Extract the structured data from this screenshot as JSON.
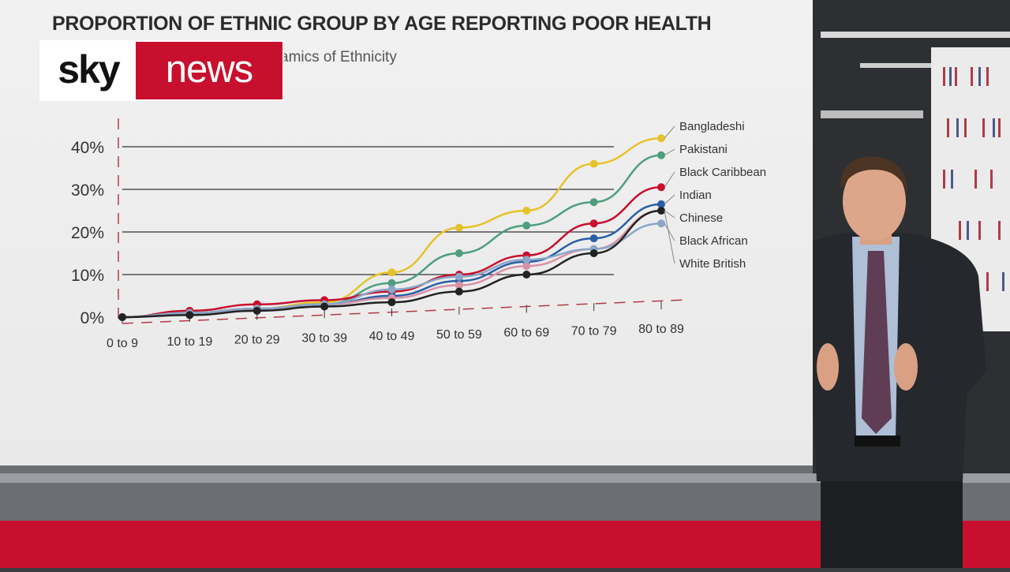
{
  "logo": {
    "left": "sky",
    "right": "news"
  },
  "chart_data": {
    "type": "line",
    "title": "PROPORTION OF ETHNIC GROUP BY AGE REPORTING POOR HEALTH",
    "subtitle": "amics of Ethnicity",
    "categories": [
      "0 to 9",
      "10 to 19",
      "20 to 29",
      "30 to 39",
      "40 to 49",
      "50 to 59",
      "60 to 69",
      "70 to 79",
      "80 to 89"
    ],
    "y_ticks": [
      "0%",
      "10%",
      "20%",
      "30%",
      "40%"
    ],
    "ylim": [
      0,
      42
    ],
    "grid": "horizontal",
    "legend_position": "right, at line ends",
    "series": [
      {
        "name": "Bangladeshi",
        "color": "#e6c229",
        "values": [
          0,
          1,
          2,
          3.5,
          10.5,
          21,
          25,
          36,
          42
        ]
      },
      {
        "name": "Pakistani",
        "color": "#4e9e7e",
        "values": [
          0,
          1,
          2,
          3,
          8,
          15,
          21.5,
          27,
          38
        ]
      },
      {
        "name": "Black Caribbean",
        "color": "#c8102e",
        "values": [
          0,
          1.5,
          3,
          4,
          6,
          10,
          14.5,
          22,
          30.5
        ]
      },
      {
        "name": "Indian",
        "color": "#2a5fa5",
        "values": [
          0,
          1,
          2,
          3,
          5,
          8.5,
          13,
          18.5,
          26.5
        ]
      },
      {
        "name": "Chinese",
        "color": "#d891a5",
        "values": [
          0,
          1,
          2,
          3,
          4.5,
          7.5,
          12,
          16,
          25
        ]
      },
      {
        "name": "Black African",
        "color": "#8aa7c8",
        "values": [
          0,
          1,
          2,
          3,
          6.5,
          9.5,
          13.5,
          16,
          22
        ]
      },
      {
        "name": "White British",
        "color": "#222222",
        "values": [
          0,
          0.5,
          1.5,
          2.5,
          3.5,
          6,
          10,
          15,
          25
        ]
      }
    ]
  }
}
